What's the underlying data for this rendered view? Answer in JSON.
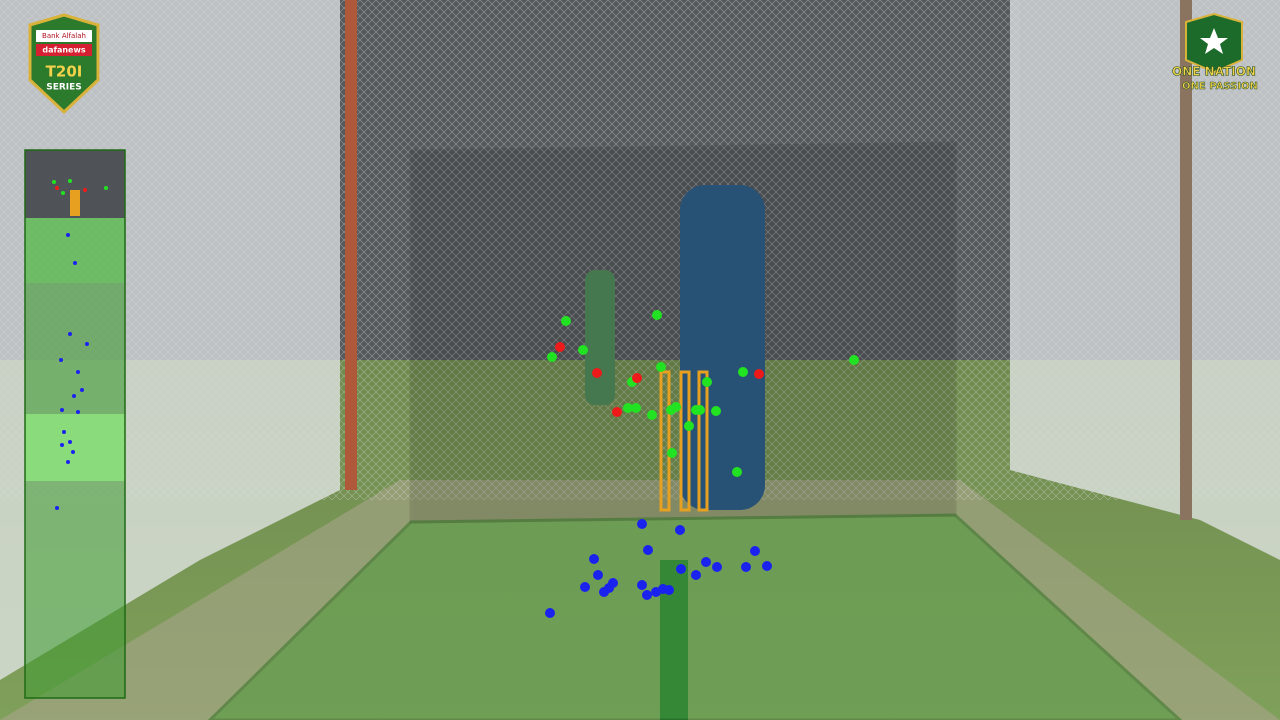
{
  "logo_left": {
    "sponsor": "Bank Alfalah",
    "brand": "dafanews",
    "series_line1": "T20I",
    "series_line2": "SERIES"
  },
  "logo_right": {
    "line1": "ONE NATION",
    "line2": "ONE PASSION"
  }
}
